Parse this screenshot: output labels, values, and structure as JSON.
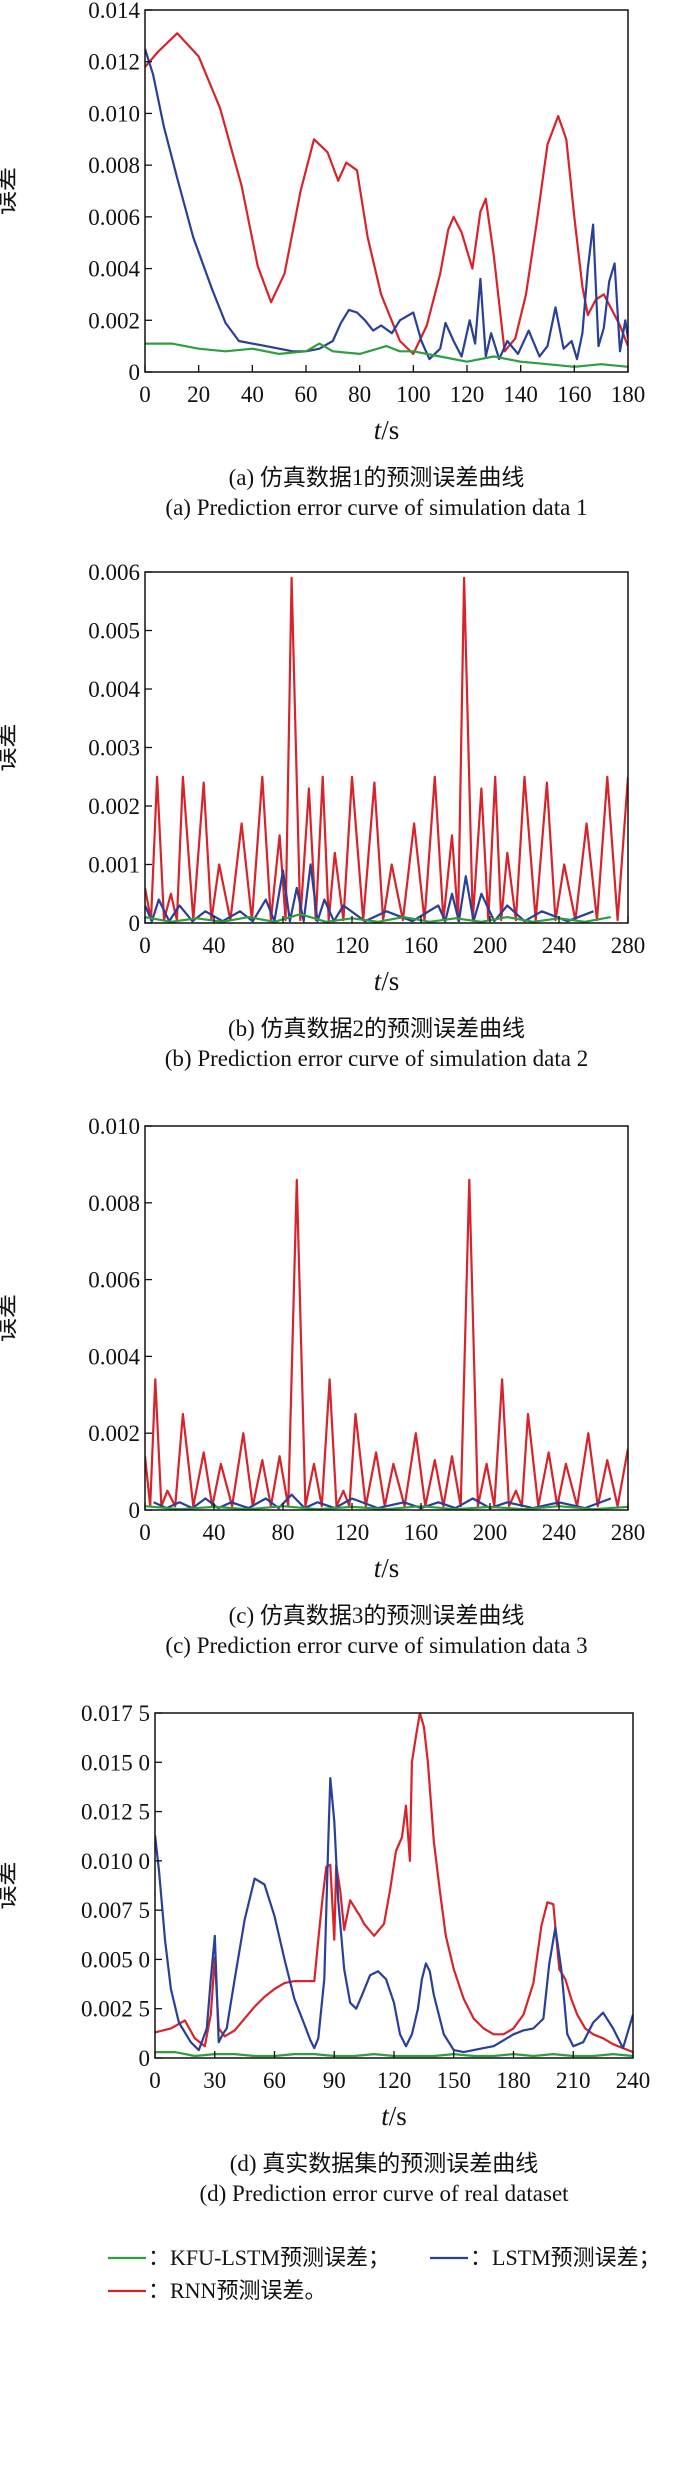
{
  "colors": {
    "kfu": "#2e9e3e",
    "lstm": "#2a3f98",
    "rnn": "#d9232a"
  },
  "legend": [
    {
      "key": "kfu",
      "label": "：KFU-LSTM预测误差；"
    },
    {
      "key": "lstm",
      "label": "：LSTM预测误差；"
    },
    {
      "key": "rnn",
      "label": "：RNN预测误差。"
    }
  ],
  "chart_data": [
    {
      "type": "line",
      "ylabel": "误差",
      "xlabel": {
        "italic": "t",
        "unit": "/s"
      },
      "xlim": [
        0,
        180
      ],
      "ylim": [
        0,
        0.014
      ],
      "xticks": [
        0,
        20,
        40,
        60,
        80,
        100,
        120,
        140,
        160,
        180
      ],
      "yticks": [
        "0",
        "0.002",
        "0.004",
        "0.006",
        "0.008",
        "0.010",
        "0.012",
        "0.014"
      ],
      "caption_cn": "(a) 仿真数据1的预测误差曲线",
      "caption_en": "(a) Prediction error curve of simulation data 1",
      "series": [
        {
          "key": "rnn",
          "x": [
            0,
            5,
            12,
            20,
            28,
            36,
            42,
            47,
            52,
            58,
            63,
            68,
            72,
            75,
            79,
            83,
            88,
            95,
            100,
            105,
            110,
            113,
            115,
            118,
            122,
            125,
            127,
            130,
            134,
            138,
            142,
            146,
            150,
            154,
            157,
            160,
            163,
            165,
            168,
            171,
            174,
            177,
            180
          ],
          "y": [
            0.0118,
            0.0124,
            0.0131,
            0.0122,
            0.0102,
            0.0072,
            0.0041,
            0.0027,
            0.0038,
            0.007,
            0.009,
            0.0085,
            0.0074,
            0.0081,
            0.0078,
            0.0052,
            0.003,
            0.0012,
            0.0007,
            0.0018,
            0.0038,
            0.0055,
            0.006,
            0.0054,
            0.004,
            0.0062,
            0.0067,
            0.0045,
            0.0008,
            0.0013,
            0.003,
            0.0058,
            0.0088,
            0.0099,
            0.009,
            0.006,
            0.0033,
            0.0022,
            0.0028,
            0.003,
            0.0024,
            0.0018,
            0.001
          ]
        },
        {
          "key": "lstm",
          "x": [
            0,
            3,
            7,
            12,
            18,
            25,
            30,
            35,
            40,
            45,
            50,
            55,
            60,
            65,
            70,
            73,
            76,
            79,
            82,
            85,
            88,
            92,
            95,
            100,
            103,
            106,
            110,
            112,
            115,
            118,
            121,
            123,
            125,
            127,
            129,
            132,
            135,
            139,
            143,
            147,
            150,
            153,
            156,
            159,
            161,
            163,
            165,
            167,
            169,
            171,
            173,
            175,
            177,
            179,
            180
          ],
          "y": [
            0.0125,
            0.0115,
            0.0095,
            0.0075,
            0.0052,
            0.0032,
            0.0019,
            0.0012,
            0.0011,
            0.001,
            0.0009,
            0.0008,
            0.0008,
            0.0009,
            0.0012,
            0.0019,
            0.0024,
            0.0023,
            0.002,
            0.0016,
            0.0018,
            0.0015,
            0.002,
            0.0023,
            0.0012,
            0.0005,
            0.0009,
            0.0019,
            0.0012,
            0.0006,
            0.002,
            0.0011,
            0.0036,
            0.0006,
            0.0015,
            0.0005,
            0.0012,
            0.0007,
            0.0016,
            0.0006,
            0.001,
            0.0025,
            0.0009,
            0.0012,
            0.0005,
            0.0015,
            0.004,
            0.0057,
            0.001,
            0.0017,
            0.0035,
            0.0042,
            0.0008,
            0.002,
            0.0013
          ]
        },
        {
          "key": "kfu",
          "x": [
            0,
            10,
            20,
            30,
            40,
            50,
            60,
            65,
            70,
            80,
            90,
            95,
            100,
            110,
            120,
            130,
            140,
            150,
            160,
            170,
            180
          ],
          "y": [
            0.0011,
            0.0011,
            0.0009,
            0.0008,
            0.0009,
            0.0007,
            0.0008,
            0.0011,
            0.0008,
            0.0007,
            0.001,
            0.0008,
            0.0008,
            0.0006,
            0.0004,
            0.0006,
            0.0004,
            0.0003,
            0.0002,
            0.0003,
            0.0002
          ]
        }
      ]
    },
    {
      "type": "line",
      "ylabel": "误差",
      "xlabel": {
        "italic": "t",
        "unit": "/s"
      },
      "xlim": [
        0,
        280
      ],
      "ylim": [
        0,
        0.006
      ],
      "xticks": [
        0,
        40,
        80,
        120,
        160,
        200,
        240,
        280
      ],
      "yticks": [
        "0",
        "0.001",
        "0.002",
        "0.003",
        "0.004",
        "0.005",
        "0.006"
      ],
      "caption_cn": "(b) 仿真数据2的预测误差曲线",
      "caption_en": "(b) Prediction error curve of simulation data 2",
      "rnn_peaks": [
        [
          0,
          0.0006
        ],
        [
          7,
          0.0025
        ],
        [
          15,
          0.0005
        ],
        [
          22,
          0.0025
        ],
        [
          34,
          0.0024
        ],
        [
          43,
          0.001
        ],
        [
          56,
          0.0017
        ],
        [
          68,
          0.0025
        ],
        [
          78,
          0.0015
        ],
        [
          85,
          0.0059
        ],
        [
          95,
          0.0023
        ],
        [
          103,
          0.0025
        ],
        [
          110,
          0.0012
        ],
        [
          120,
          0.0025
        ],
        [
          133,
          0.0024
        ],
        [
          143,
          0.001
        ],
        [
          156,
          0.0017
        ],
        [
          168,
          0.0025
        ],
        [
          178,
          0.0015
        ],
        [
          185,
          0.0059
        ],
        [
          195,
          0.0023
        ],
        [
          203,
          0.0025
        ],
        [
          210,
          0.0012
        ],
        [
          220,
          0.0025
        ],
        [
          233,
          0.0024
        ],
        [
          243,
          0.001
        ],
        [
          256,
          0.0017
        ],
        [
          268,
          0.0025
        ],
        [
          280,
          0.0025
        ]
      ],
      "rnn_valley": 5e-05,
      "lstm_peaks": [
        [
          0,
          0.0003
        ],
        [
          8,
          0.0004
        ],
        [
          20,
          0.0003
        ],
        [
          35,
          0.0002
        ],
        [
          55,
          0.0002
        ],
        [
          70,
          0.0004
        ],
        [
          80,
          0.0009
        ],
        [
          88,
          0.0006
        ],
        [
          96,
          0.001
        ],
        [
          104,
          0.0004
        ],
        [
          115,
          0.0003
        ],
        [
          140,
          0.0002
        ],
        [
          170,
          0.0003
        ],
        [
          178,
          0.0005
        ],
        [
          186,
          0.0008
        ],
        [
          195,
          0.0005
        ],
        [
          210,
          0.0003
        ],
        [
          230,
          0.0002
        ],
        [
          260,
          0.0002
        ]
      ],
      "lstm_valley": 3e-05,
      "kfu_peaks": [
        [
          0,
          0.0001
        ],
        [
          30,
          8e-05
        ],
        [
          60,
          0.0001
        ],
        [
          90,
          0.00015
        ],
        [
          120,
          8e-05
        ],
        [
          150,
          0.0001
        ],
        [
          180,
          8e-05
        ],
        [
          210,
          0.0001
        ],
        [
          240,
          8e-05
        ],
        [
          270,
          0.0001
        ]
      ],
      "kfu_valley": 2e-05
    },
    {
      "type": "line",
      "ylabel": "误差",
      "xlabel": {
        "italic": "t",
        "unit": "/s"
      },
      "xlim": [
        0,
        280
      ],
      "ylim": [
        0,
        0.01
      ],
      "xticks": [
        0,
        40,
        80,
        120,
        160,
        200,
        240,
        280
      ],
      "yticks": [
        "0",
        "0.002",
        "0.004",
        "0.006",
        "0.008",
        "0.010"
      ],
      "caption_cn": "(c) 仿真数据3的预测误差曲线",
      "caption_en": "(c) Prediction error curve of simulation data 3",
      "rnn_peaks": [
        [
          0,
          0.0014
        ],
        [
          6,
          0.0034
        ],
        [
          13,
          0.0005
        ],
        [
          22,
          0.0025
        ],
        [
          34,
          0.0015
        ],
        [
          44,
          0.0012
        ],
        [
          57,
          0.002
        ],
        [
          68,
          0.0013
        ],
        [
          78,
          0.0014
        ],
        [
          88,
          0.0086
        ],
        [
          98,
          0.0012
        ],
        [
          107,
          0.0034
        ],
        [
          115,
          0.0005
        ],
        [
          122,
          0.0025
        ],
        [
          134,
          0.0015
        ],
        [
          144,
          0.0012
        ],
        [
          157,
          0.002
        ],
        [
          168,
          0.0013
        ],
        [
          178,
          0.0014
        ],
        [
          188,
          0.0086
        ],
        [
          198,
          0.0012
        ],
        [
          207,
          0.0034
        ],
        [
          215,
          0.0005
        ],
        [
          222,
          0.0025
        ],
        [
          234,
          0.0015
        ],
        [
          244,
          0.0012
        ],
        [
          257,
          0.002
        ],
        [
          268,
          0.0013
        ],
        [
          280,
          0.0016
        ]
      ],
      "rnn_valley": 0.0001,
      "lstm_peaks": [
        [
          5,
          0.0002
        ],
        [
          20,
          0.0002
        ],
        [
          35,
          0.0003
        ],
        [
          50,
          0.0002
        ],
        [
          70,
          0.0003
        ],
        [
          85,
          0.0004
        ],
        [
          100,
          0.0002
        ],
        [
          120,
          0.0003
        ],
        [
          150,
          0.0002
        ],
        [
          170,
          0.0002
        ],
        [
          190,
          0.0003
        ],
        [
          210,
          0.0002
        ],
        [
          240,
          0.0002
        ],
        [
          270,
          0.0003
        ]
      ],
      "lstm_valley": 5e-05,
      "kfu_peaks": [
        [
          0,
          0.0001
        ],
        [
          40,
          8e-05
        ],
        [
          80,
          0.0001
        ],
        [
          120,
          8e-05
        ],
        [
          160,
          0.0001
        ],
        [
          200,
          8e-05
        ],
        [
          240,
          0.0001
        ],
        [
          280,
          8e-05
        ]
      ],
      "kfu_valley": 2e-05
    },
    {
      "type": "line",
      "ylabel": "误差",
      "xlabel": {
        "italic": "t",
        "unit": "/s"
      },
      "xlim": [
        0,
        240
      ],
      "ylim": [
        0,
        0.0175
      ],
      "xticks": [
        0,
        30,
        60,
        90,
        120,
        150,
        180,
        210,
        240
      ],
      "yticks": [
        "0",
        "0.002 5",
        "0.005 0",
        "0.007 5",
        "0.010 0",
        "0.012 5",
        "0.015 0",
        "0.017 5"
      ],
      "caption_cn": "(d) 真实数据集的预测误差曲线",
      "caption_en": "(d) Prediction error curve of real dataset",
      "series": [
        {
          "key": "rnn",
          "x": [
            0,
            8,
            15,
            20,
            25,
            28,
            30,
            32,
            35,
            40,
            45,
            50,
            55,
            60,
            65,
            70,
            75,
            80,
            82,
            84,
            86,
            88,
            90,
            91,
            93,
            95,
            98,
            101,
            103,
            105,
            110,
            115,
            118,
            121,
            124,
            126,
            128,
            129,
            131,
            133,
            135,
            137,
            140,
            143,
            146,
            150,
            155,
            160,
            165,
            170,
            175,
            180,
            185,
            190,
            194,
            197,
            200,
            203,
            206,
            209,
            212,
            216,
            220,
            225,
            230,
            235,
            240
          ],
          "y": [
            0.0013,
            0.0015,
            0.0019,
            0.001,
            0.0006,
            0.0022,
            0.0051,
            0.0015,
            0.0011,
            0.0014,
            0.002,
            0.0026,
            0.0031,
            0.0035,
            0.0038,
            0.0039,
            0.0039,
            0.0039,
            0.006,
            0.008,
            0.0097,
            0.0098,
            0.006,
            0.0098,
            0.0085,
            0.0065,
            0.008,
            0.0075,
            0.0072,
            0.0068,
            0.0062,
            0.0068,
            0.0085,
            0.0105,
            0.0112,
            0.0128,
            0.01,
            0.015,
            0.0163,
            0.0175,
            0.0168,
            0.015,
            0.011,
            0.0085,
            0.0062,
            0.0045,
            0.003,
            0.002,
            0.0015,
            0.0012,
            0.0012,
            0.0015,
            0.0022,
            0.0038,
            0.0067,
            0.0079,
            0.0078,
            0.0045,
            0.004,
            0.003,
            0.0022,
            0.0015,
            0.0012,
            0.001,
            0.0007,
            0.0005,
            0.0003
          ]
        },
        {
          "key": "lstm",
          "x": [
            0,
            2,
            5,
            8,
            12,
            18,
            22,
            26,
            28,
            30,
            32,
            34,
            36,
            40,
            45,
            50,
            55,
            60,
            65,
            70,
            75,
            78,
            80,
            82,
            85,
            87,
            88,
            90,
            92,
            95,
            98,
            101,
            104,
            108,
            112,
            116,
            120,
            123,
            126,
            129,
            132,
            134,
            136,
            138,
            140,
            145,
            150,
            155,
            160,
            165,
            170,
            175,
            180,
            185,
            190,
            195,
            198,
            201,
            204,
            207,
            210,
            215,
            220,
            225,
            230,
            235,
            240
          ],
          "y": [
            0.0113,
            0.0095,
            0.006,
            0.0035,
            0.0018,
            0.0008,
            0.0004,
            0.0015,
            0.004,
            0.0062,
            0.0008,
            0.0012,
            0.0015,
            0.004,
            0.007,
            0.0091,
            0.0088,
            0.0072,
            0.005,
            0.003,
            0.0017,
            0.0009,
            0.0005,
            0.001,
            0.004,
            0.011,
            0.0142,
            0.012,
            0.008,
            0.0045,
            0.0028,
            0.0025,
            0.0032,
            0.0042,
            0.0044,
            0.004,
            0.0028,
            0.0012,
            0.0006,
            0.0012,
            0.0025,
            0.004,
            0.0048,
            0.0044,
            0.0032,
            0.0012,
            0.0004,
            0.0003,
            0.0004,
            0.0005,
            0.0006,
            0.0009,
            0.0012,
            0.0014,
            0.0015,
            0.002,
            0.0048,
            0.0066,
            0.0045,
            0.0012,
            0.0006,
            0.0008,
            0.0018,
            0.0023,
            0.0015,
            0.0005,
            0.0022
          ]
        },
        {
          "key": "kfu",
          "x": [
            0,
            10,
            20,
            30,
            40,
            50,
            60,
            70,
            80,
            90,
            100,
            110,
            120,
            130,
            140,
            150,
            160,
            170,
            180,
            190,
            200,
            210,
            220,
            230,
            240
          ],
          "y": [
            0.0003,
            0.0003,
            0.0001,
            0.0002,
            0.0002,
            0.0001,
            0.0001,
            0.0002,
            0.0002,
            0.0001,
            0.0001,
            0.0002,
            0.0001,
            0.0001,
            0.0001,
            0.0002,
            0.0001,
            0.0001,
            0.0002,
            0.0001,
            0.0002,
            0.0001,
            0.0001,
            0.0002,
            0.0001
          ]
        }
      ]
    }
  ]
}
